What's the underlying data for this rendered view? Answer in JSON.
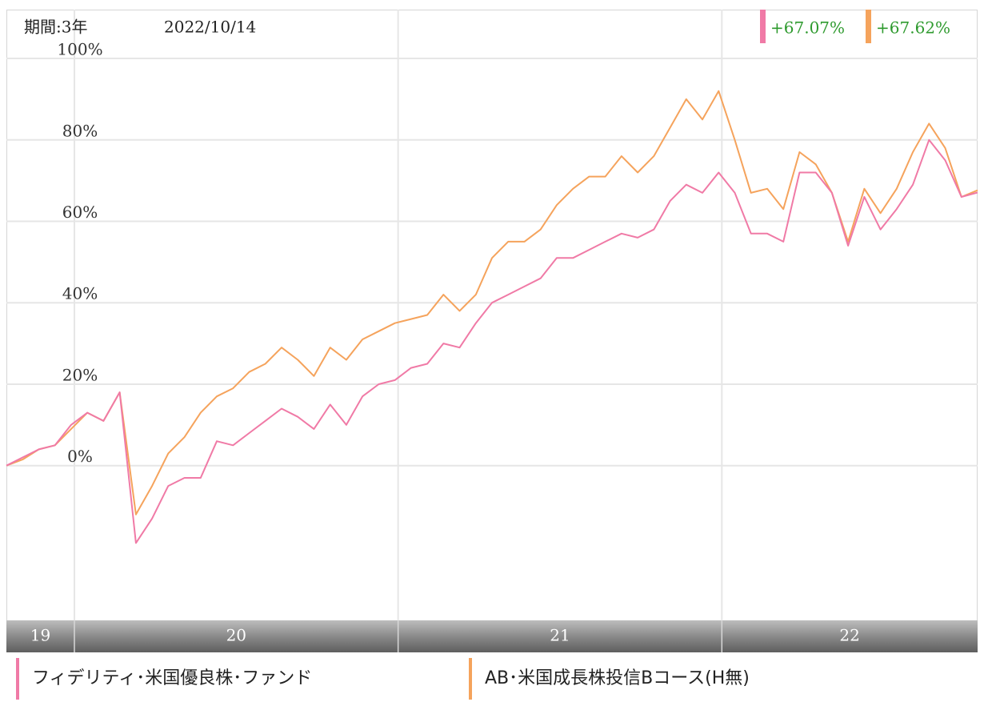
{
  "chart_data": {
    "type": "line",
    "period": "期間:3年",
    "date": "2022/10/14",
    "x": [
      2019.79,
      2019.84,
      2019.89,
      2019.94,
      2019.99,
      2020.04,
      2020.09,
      2020.14,
      2020.19,
      2020.24,
      2020.29,
      2020.34,
      2020.39,
      2020.44,
      2020.49,
      2020.54,
      2020.59,
      2020.64,
      2020.69,
      2020.74,
      2020.79,
      2020.84,
      2020.89,
      2020.94,
      2020.99,
      2021.04,
      2021.09,
      2021.14,
      2021.19,
      2021.24,
      2021.29,
      2021.34,
      2021.39,
      2021.44,
      2021.49,
      2021.54,
      2021.59,
      2021.64,
      2021.69,
      2021.74,
      2021.79,
      2021.84,
      2021.89,
      2021.94,
      2021.99,
      2022.04,
      2022.09,
      2022.14,
      2022.19,
      2022.24,
      2022.29,
      2022.34,
      2022.39,
      2022.44,
      2022.49,
      2022.54,
      2022.59,
      2022.64,
      2022.69,
      2022.74,
      2022.79
    ],
    "xlim": [
      2019.79,
      2022.79
    ],
    "xticks": [
      {
        "value": 2020,
        "label": "20"
      },
      {
        "value": 2021,
        "label": "21"
      },
      {
        "value": 2022,
        "label": "22"
      }
    ],
    "first_band_label": "19",
    "ylim": [
      -38,
      112
    ],
    "yticks": [
      {
        "value": 0,
        "label": "0%"
      },
      {
        "value": 20,
        "label": "20%"
      },
      {
        "value": 40,
        "label": "40%"
      },
      {
        "value": 60,
        "label": "60%"
      },
      {
        "value": 80,
        "label": "80%"
      },
      {
        "value": 100,
        "label": "100%"
      }
    ],
    "grid": true,
    "series": [
      {
        "name": "フィデリティ･米国優良株･ファンド",
        "color": "#f07aa6",
        "last_label": "+67.07%",
        "values": [
          0,
          2,
          4,
          5,
          10,
          13,
          11,
          18,
          -19,
          -13,
          -5,
          -3,
          -3,
          6,
          5,
          8,
          11,
          14,
          12,
          9,
          15,
          10,
          17,
          20,
          21,
          24,
          25,
          30,
          29,
          35,
          40,
          42,
          44,
          46,
          51,
          51,
          53,
          55,
          57,
          56,
          58,
          65,
          69,
          67,
          72,
          67,
          57,
          57,
          55,
          72,
          72,
          67,
          54,
          66,
          58,
          63,
          69,
          80,
          75,
          66,
          67.07
        ]
      },
      {
        "name": "AB･米国成長株投信Bコース(H無)",
        "color": "#f5a35c",
        "last_label": "+67.62%",
        "values": [
          0,
          1.5,
          4,
          5,
          9,
          13,
          11,
          18,
          -12,
          -5,
          3,
          7,
          13,
          17,
          19,
          23,
          25,
          29,
          26,
          22,
          29,
          26,
          31,
          33,
          35,
          36,
          37,
          42,
          38,
          42,
          51,
          55,
          55,
          58,
          64,
          68,
          71,
          71,
          76,
          72,
          76,
          83,
          90,
          85,
          92,
          80,
          67,
          68,
          63,
          77,
          74,
          67,
          55,
          68,
          62,
          68,
          77,
          84,
          78,
          66,
          67.62
        ]
      }
    ],
    "label_color": "#2e9a2e"
  }
}
